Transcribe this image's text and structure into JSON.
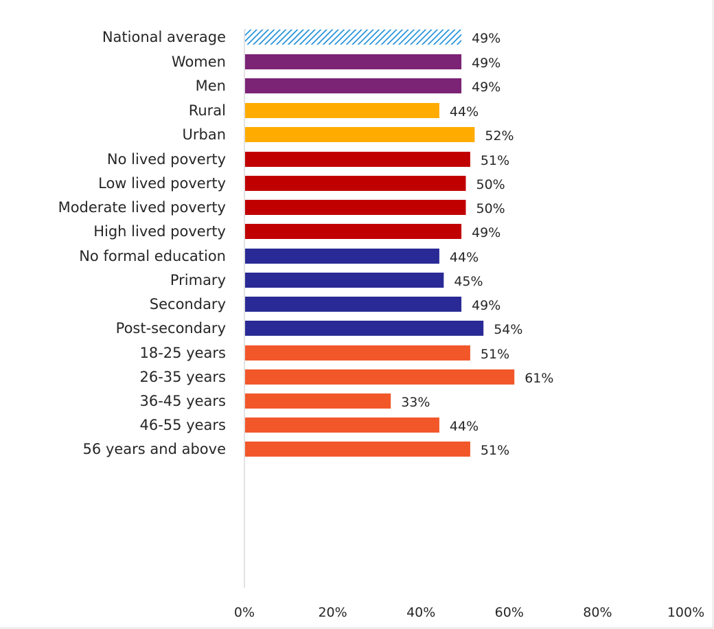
{
  "chart_data": {
    "type": "bar",
    "orientation": "horizontal",
    "title": "",
    "xlabel": "",
    "ylabel": "",
    "xlim": [
      0,
      100
    ],
    "x_ticks": [
      "0%",
      "20%",
      "40%",
      "60%",
      "80%",
      "100%"
    ],
    "value_suffix": "%",
    "grid": false,
    "legend": "none",
    "groups": [
      {
        "color": "#1f8fd9",
        "pattern": "diagonal-hatch",
        "items": [
          {
            "category": "National average",
            "value": 49
          }
        ]
      },
      {
        "color": "#7b2375",
        "items": [
          {
            "category": "Women",
            "value": 49
          },
          {
            "category": "Men",
            "value": 49
          }
        ]
      },
      {
        "color": "#ffab00",
        "items": [
          {
            "category": "Rural",
            "value": 44
          },
          {
            "category": "Urban",
            "value": 52
          }
        ]
      },
      {
        "color": "#c00000",
        "items": [
          {
            "category": "No lived poverty",
            "value": 51
          },
          {
            "category": "Low lived poverty",
            "value": 50
          },
          {
            "category": "Moderate lived poverty",
            "value": 50
          },
          {
            "category": "High lived poverty",
            "value": 49
          }
        ]
      },
      {
        "color": "#2a2a96",
        "items": [
          {
            "category": "No formal education",
            "value": 44
          },
          {
            "category": "Primary",
            "value": 45
          },
          {
            "category": "Secondary",
            "value": 49
          },
          {
            "category": "Post-secondary",
            "value": 54
          }
        ]
      },
      {
        "color": "#f2572a",
        "items": [
          {
            "category": "18-25 years",
            "value": 51
          },
          {
            "category": "26-35 years",
            "value": 61
          },
          {
            "category": "36-45 years",
            "value": 33
          },
          {
            "category": "46-55 years",
            "value": 44
          },
          {
            "category": "56 years and above",
            "value": 51
          }
        ]
      }
    ]
  }
}
